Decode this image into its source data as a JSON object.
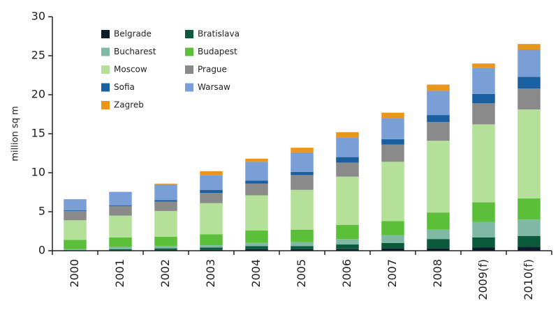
{
  "chart_data": {
    "type": "stacked_bar",
    "y_label": "million sq m",
    "categories": [
      "2000",
      "2001",
      "2002",
      "2003",
      "2004",
      "2005",
      "2006",
      "2007",
      "2008",
      "2009(f)",
      "2010(f)"
    ],
    "series": [
      {
        "name": "Belgrade",
        "color": "#0b1b2b",
        "values": [
          0,
          0.05,
          0.1,
          0.1,
          0.2,
          0.2,
          0.2,
          0.3,
          0.3,
          0.4,
          0.5
        ]
      },
      {
        "name": "Bratislava",
        "color": "#0b5a3c",
        "values": [
          0.1,
          0.15,
          0.2,
          0.3,
          0.4,
          0.4,
          0.6,
          0.7,
          1.2,
          1.3,
          1.4
        ]
      },
      {
        "name": "Bucharest",
        "color": "#7fb8a4",
        "values": [
          0.1,
          0.3,
          0.3,
          0.3,
          0.4,
          0.5,
          0.7,
          1.0,
          1.2,
          2.0,
          2.1
        ]
      },
      {
        "name": "Budapest",
        "color": "#5cbf3a",
        "values": [
          1.2,
          1.2,
          1.2,
          1.4,
          1.6,
          1.6,
          1.8,
          1.8,
          2.2,
          2.5,
          2.7
        ]
      },
      {
        "name": "Moscow",
        "color": "#b5e09a",
        "values": [
          2.5,
          2.8,
          3.3,
          4.0,
          4.5,
          5.1,
          6.2,
          7.6,
          9.2,
          10.0,
          11.4
        ]
      },
      {
        "name": "Prague",
        "color": "#8a8a8a",
        "values": [
          1.2,
          1.2,
          1.2,
          1.3,
          1.5,
          1.9,
          1.8,
          2.2,
          2.4,
          2.7,
          2.7
        ]
      },
      {
        "name": "Sofia",
        "color": "#1a5fa0",
        "values": [
          0.1,
          0.1,
          0.2,
          0.4,
          0.4,
          0.4,
          0.7,
          0.7,
          0.9,
          1.2,
          1.5
        ]
      },
      {
        "name": "Warsaw",
        "color": "#7a9ed6",
        "values": [
          1.4,
          1.7,
          2.0,
          1.9,
          2.4,
          2.5,
          2.5,
          2.7,
          3.1,
          3.3,
          3.5
        ]
      },
      {
        "name": "Zagreb",
        "color": "#e8961e",
        "values": [
          0,
          0.05,
          0.1,
          0.5,
          0.4,
          0.6,
          0.7,
          0.7,
          0.8,
          0.6,
          0.7
        ]
      }
    ],
    "ylim": [
      0,
      30
    ],
    "yticks": [
      0,
      5,
      10,
      15,
      20,
      25,
      30
    ]
  }
}
